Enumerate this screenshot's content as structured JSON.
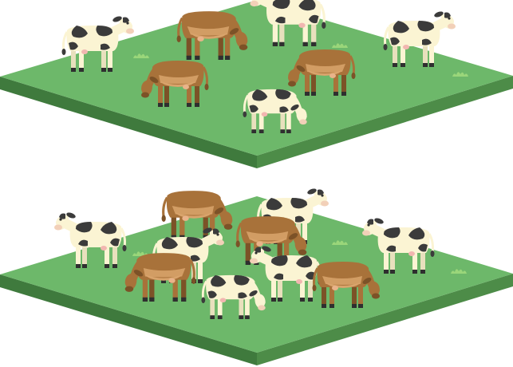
{
  "colors": {
    "grass_top": "#6db86a",
    "grass_left_side": "#3f7a3d",
    "grass_right_side": "#4d8c48",
    "tuft": "#9ad67a",
    "holstein_body": "#fbf4d3",
    "holstein_patch": "#3b3b3b",
    "brown_body": "#a8723a",
    "brown_dark": "#7c5227",
    "brown_belly": "#d9a46c",
    "hoof": "#2f2f2f"
  },
  "fields": [
    {
      "name": "top-field",
      "cows": [
        {
          "breed": "holstein",
          "facing": "right",
          "pose": "standing"
        },
        {
          "breed": "brown",
          "facing": "right",
          "pose": "grazing"
        },
        {
          "breed": "holstein",
          "facing": "left",
          "pose": "standing"
        },
        {
          "breed": "holstein",
          "facing": "right",
          "pose": "standing"
        },
        {
          "breed": "brown",
          "facing": "left",
          "pose": "grazing"
        },
        {
          "breed": "brown",
          "facing": "left",
          "pose": "grazing"
        },
        {
          "breed": "holstein",
          "facing": "right",
          "pose": "grazing"
        }
      ]
    },
    {
      "name": "bottom-field",
      "cows": [
        {
          "breed": "brown",
          "facing": "right",
          "pose": "grazing"
        },
        {
          "breed": "holstein",
          "facing": "left",
          "pose": "standing"
        },
        {
          "breed": "holstein",
          "facing": "right",
          "pose": "standing"
        },
        {
          "breed": "holstein",
          "facing": "left",
          "pose": "standing"
        },
        {
          "breed": "holstein",
          "facing": "right",
          "pose": "standing"
        },
        {
          "breed": "brown",
          "facing": "right",
          "pose": "grazing"
        },
        {
          "breed": "brown",
          "facing": "left",
          "pose": "grazing"
        },
        {
          "breed": "holstein",
          "facing": "left",
          "pose": "standing"
        },
        {
          "breed": "brown",
          "facing": "right",
          "pose": "grazing"
        },
        {
          "breed": "holstein",
          "facing": "right",
          "pose": "grazing"
        }
      ]
    }
  ]
}
